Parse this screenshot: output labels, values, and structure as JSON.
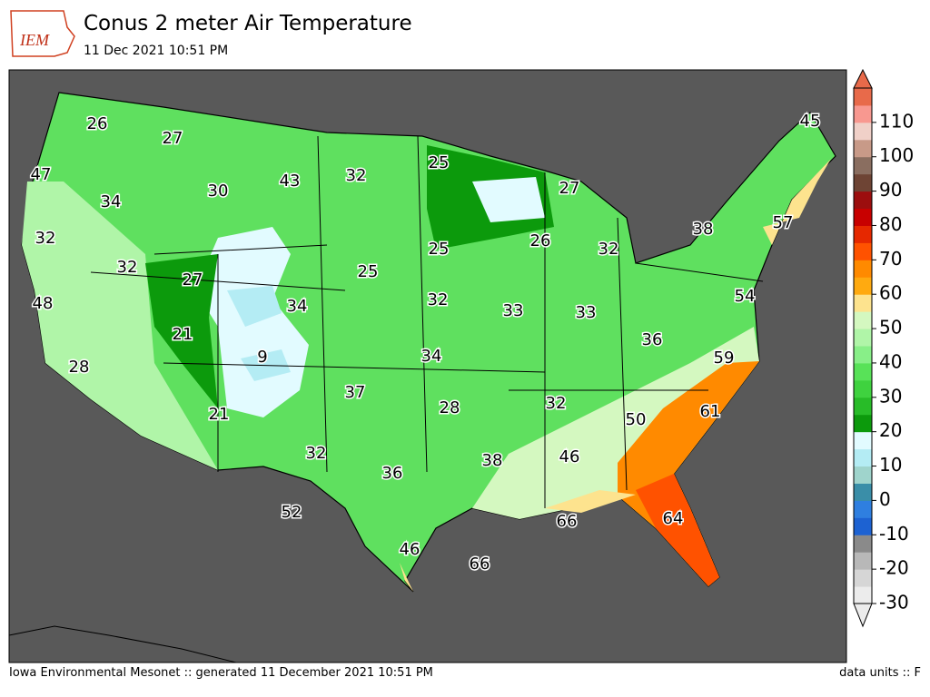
{
  "header": {
    "logo": "IEM",
    "title": "Conus 2 meter Air Temperature",
    "subtitle": "11 Dec 2021 10:51 PM"
  },
  "map": {
    "temperature_labels": [
      26,
      27,
      47,
      34,
      30,
      43,
      32,
      25,
      27,
      45,
      32,
      32,
      27,
      25,
      26,
      32,
      38,
      57,
      25,
      48,
      34,
      32,
      33,
      33,
      54,
      21,
      36,
      28,
      9,
      34,
      59,
      37,
      28,
      32,
      21,
      50,
      61,
      32,
      36,
      38,
      46,
      52,
      66,
      64,
      46,
      66
    ]
  },
  "colorbar": {
    "lim": [
      -30,
      120
    ],
    "ticks": [
      -30,
      -20,
      -10,
      0,
      10,
      20,
      30,
      40,
      50,
      60,
      70,
      80,
      90,
      100,
      110
    ],
    "colors": [
      "#ececec",
      "#d6d6d6",
      "#b8b8b8",
      "#8a8a8a",
      "#1d62d2",
      "#2f7fe0",
      "#3a8ea8",
      "#9fd4cc",
      "#b4ecf4",
      "#e2fbff",
      "#0c9a0c",
      "#28bc28",
      "#3fd23f",
      "#58e258",
      "#88ef88",
      "#b0f5a8",
      "#d4f8c0",
      "#fde38e",
      "#ffaa10",
      "#ff8a00",
      "#ff5200",
      "#e62800",
      "#c80000",
      "#9c0e0e",
      "#6e4434",
      "#8a6e60",
      "#c89a88",
      "#f0d0c8",
      "#f89890",
      "#e86a4a"
    ]
  },
  "footer": {
    "left": "Iowa Environmental Mesonet :: generated 11 December 2021 10:51 PM",
    "right": "data units :: F"
  }
}
